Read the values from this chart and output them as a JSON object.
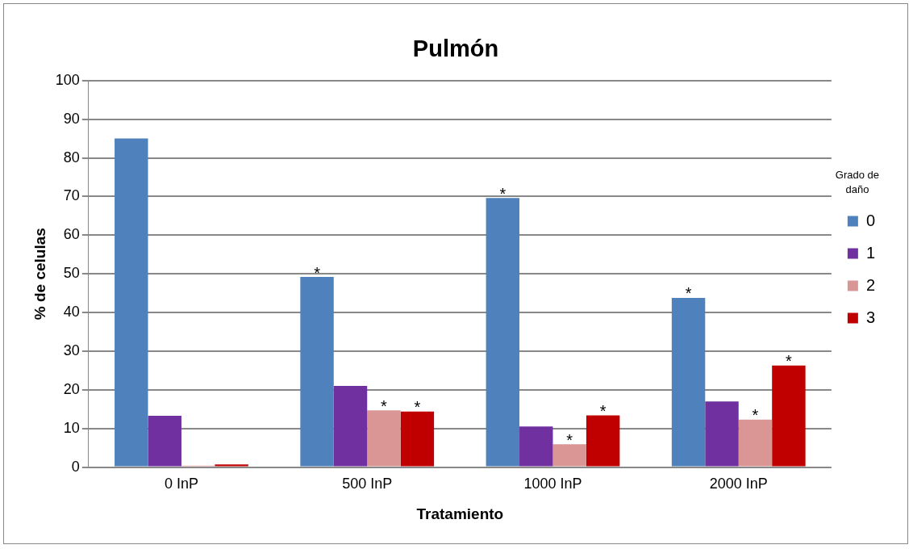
{
  "chart_data": {
    "type": "bar",
    "title": "Pulmón",
    "xlabel": "Tratamiento",
    "ylabel": "% de celulas",
    "legend_title": "Grado de daño",
    "categories": [
      "0 InP",
      "500 InP",
      "1000 InP",
      "2000 InP"
    ],
    "series": [
      {
        "name": "0",
        "color": "#4f81bd",
        "values": [
          85.0,
          49.2,
          69.6,
          43.8
        ],
        "value_labels": [
          null,
          "*",
          "*",
          "*"
        ]
      },
      {
        "name": "1",
        "color": "#7030a0",
        "values": [
          13.3,
          21.0,
          10.5,
          17.0
        ],
        "value_labels": [
          null,
          null,
          null,
          null
        ]
      },
      {
        "name": "2",
        "color": "#d99694",
        "values": [
          0.4,
          14.7,
          5.9,
          12.3
        ],
        "value_labels": [
          null,
          "*",
          "*",
          "*"
        ]
      },
      {
        "name": "3",
        "color": "#c00000",
        "values": [
          0.7,
          14.4,
          13.4,
          26.3
        ],
        "value_labels": [
          null,
          "*",
          "*",
          "*"
        ]
      }
    ],
    "ylim": [
      0,
      100
    ],
    "yticks": [
      0,
      10,
      20,
      30,
      40,
      50,
      60,
      70,
      80,
      90,
      100
    ],
    "grid": "y",
    "legend": "right"
  }
}
